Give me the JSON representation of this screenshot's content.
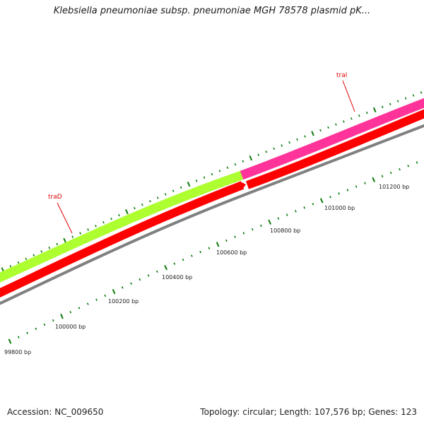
{
  "title": "Klebsiella pneumoniae subsp. pneumoniae MGH 78578 plasmid pK...",
  "footer": {
    "accession": "Accession: NC_009650",
    "summary": "Topology: circular; Length: 107,576 bp; Genes: 123"
  },
  "colors": {
    "background": "#ffffff",
    "backbone": "#808080",
    "cds_forward": "#ff0000",
    "traD_feature": "#adff2f",
    "traI_feature": "#ff3399",
    "ticks": "#0a7a0a",
    "gene_label": "#e00000"
  },
  "position_labels": [
    "99800 bp",
    "100000 bp",
    "100200 bp",
    "100400 bp",
    "100600 bp",
    "100800 bp",
    "101000 bp",
    "101200 bp"
  ],
  "genes": [
    {
      "name": "traD"
    },
    {
      "name": "traI"
    }
  ]
}
